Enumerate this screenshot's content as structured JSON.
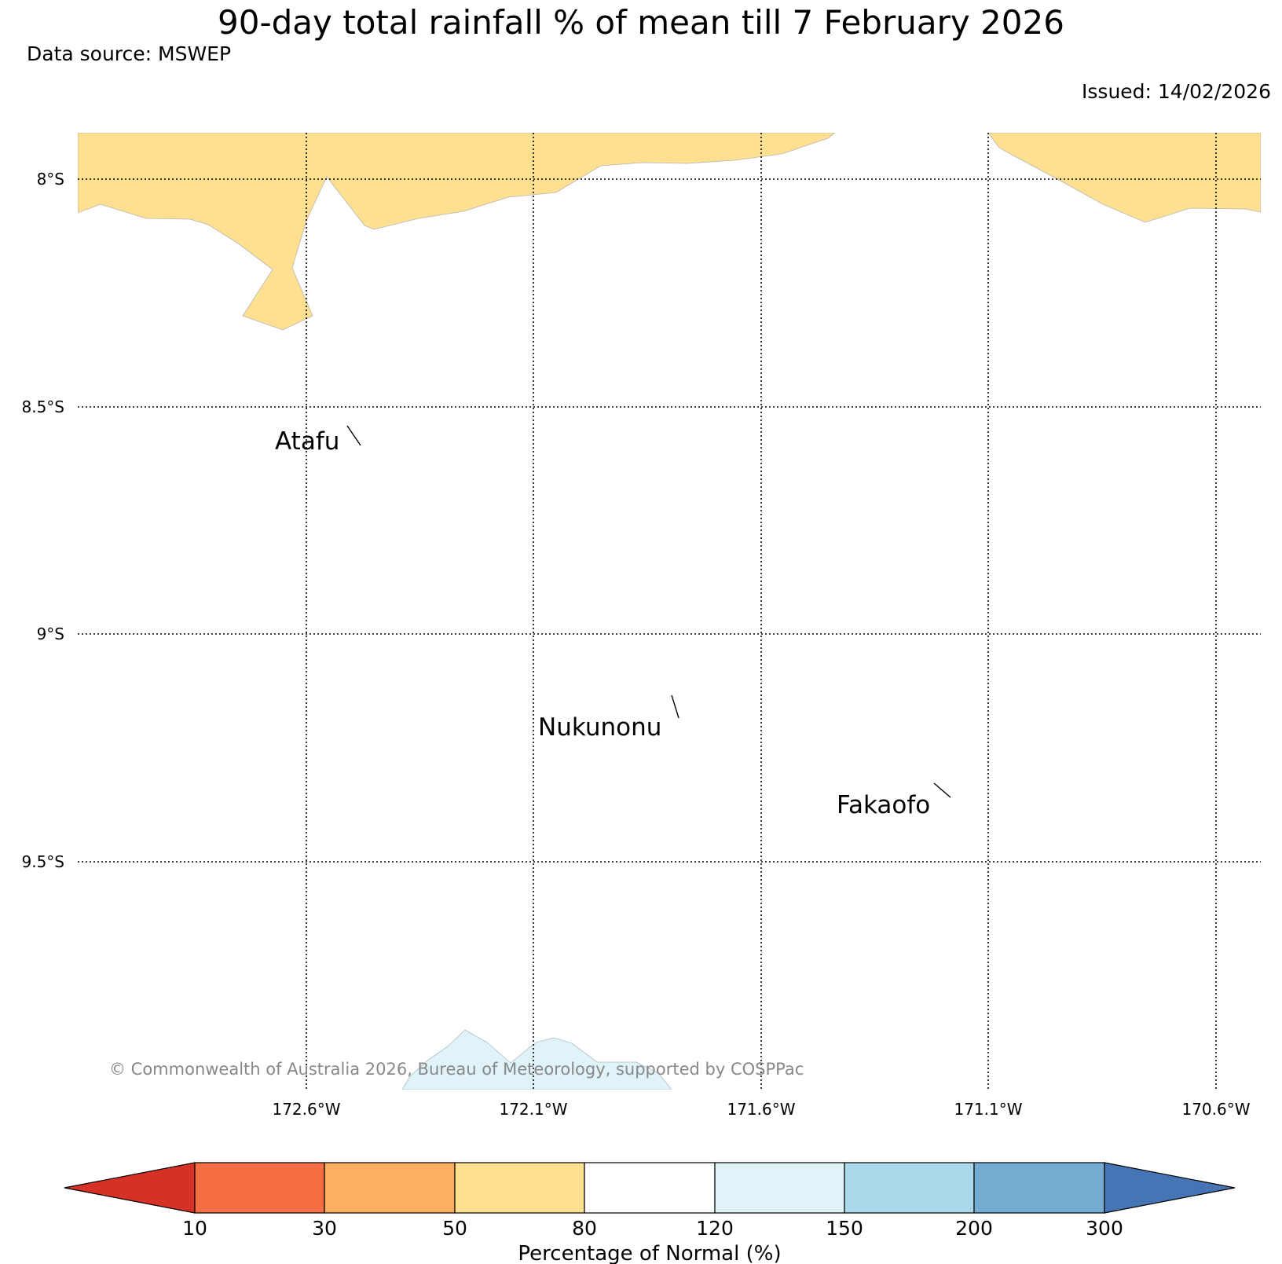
{
  "title": "90-day total rainfall % of mean till 7 February 2026",
  "data_source": "Data source: MSWEP",
  "issued": "Issued: 14/02/2026",
  "copyright": "© Commonwealth of Australia 2026, Bureau of Meteorology, supported by COSPPac",
  "map": {
    "lat_labels": [
      "8°S",
      "8.5°S",
      "9°S",
      "9.5°S"
    ],
    "lon_labels": [
      "172.6°W",
      "172.1°W",
      "171.6°W",
      "171.1°W",
      "170.6°W"
    ],
    "places": [
      "Atafu",
      "Nukunonu",
      "Fakaofo"
    ],
    "regions": [
      {
        "category": "50-80",
        "color": "#fee090",
        "location": "northern edge"
      },
      {
        "category": "120-150",
        "color": "#e0f3f8",
        "location": "southern edge"
      }
    ]
  },
  "colorbar": {
    "title": "Percentage of Normal (%)",
    "ticks": [
      "10",
      "30",
      "50",
      "80",
      "120",
      "150",
      "200",
      "300"
    ],
    "colors": [
      "#d73027",
      "#f46d43",
      "#fdae61",
      "#fee090",
      "#ffffff",
      "#e0f3f8",
      "#abd9e9",
      "#74add1",
      "#4575b4"
    ]
  }
}
